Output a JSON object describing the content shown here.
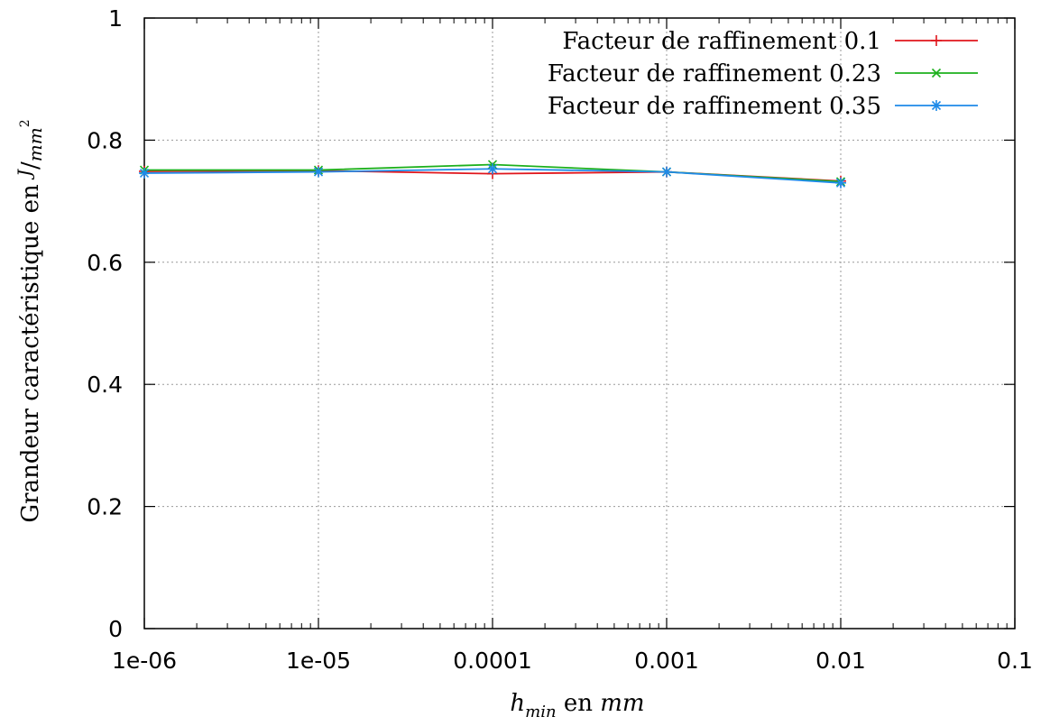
{
  "chart_data": {
    "type": "line",
    "x_scale": "log",
    "xlim": [
      1e-06,
      0.1
    ],
    "ylim": [
      0,
      1
    ],
    "grid": true,
    "legend_position": "top-right",
    "xlabel": {
      "h": "h",
      "sub": "min",
      "mid": " en ",
      "unit": "mm"
    },
    "ylabel": {
      "text": "Grandeur caractéristique en ",
      "unit_num": "J",
      "unit_den": "mm",
      "unit_exp": "2"
    },
    "x_tick_labels": [
      "1e-06",
      "1e-05",
      "0.0001",
      "0.001",
      "0.01",
      "0.1"
    ],
    "x_tick_values": [
      1e-06,
      1e-05,
      0.0001,
      0.001,
      0.01,
      0.1
    ],
    "y_tick_labels": [
      "0",
      "0.2",
      "0.4",
      "0.6",
      "0.8",
      "1"
    ],
    "y_tick_values": [
      0,
      0.2,
      0.4,
      0.6,
      0.8,
      1
    ],
    "series": [
      {
        "name": "Facteur de raffinement 0.1",
        "color": "#e0161c",
        "marker": "plus",
        "x": [
          1e-06,
          1e-05,
          0.0001,
          0.001,
          0.01
        ],
        "y": [
          0.749,
          0.75,
          0.745,
          0.748,
          0.733
        ]
      },
      {
        "name": "Facteur de raffinement 0.23",
        "color": "#1db01d",
        "marker": "cross",
        "x": [
          1e-06,
          1e-05,
          0.0001,
          0.001,
          0.01
        ],
        "y": [
          0.751,
          0.751,
          0.76,
          0.748,
          0.732
        ]
      },
      {
        "name": "Facteur de raffinement 0.35",
        "color": "#1e8ae8",
        "marker": "star",
        "x": [
          1e-06,
          1e-05,
          0.0001,
          0.001,
          0.01
        ],
        "y": [
          0.746,
          0.748,
          0.753,
          0.748,
          0.73
        ]
      }
    ]
  }
}
